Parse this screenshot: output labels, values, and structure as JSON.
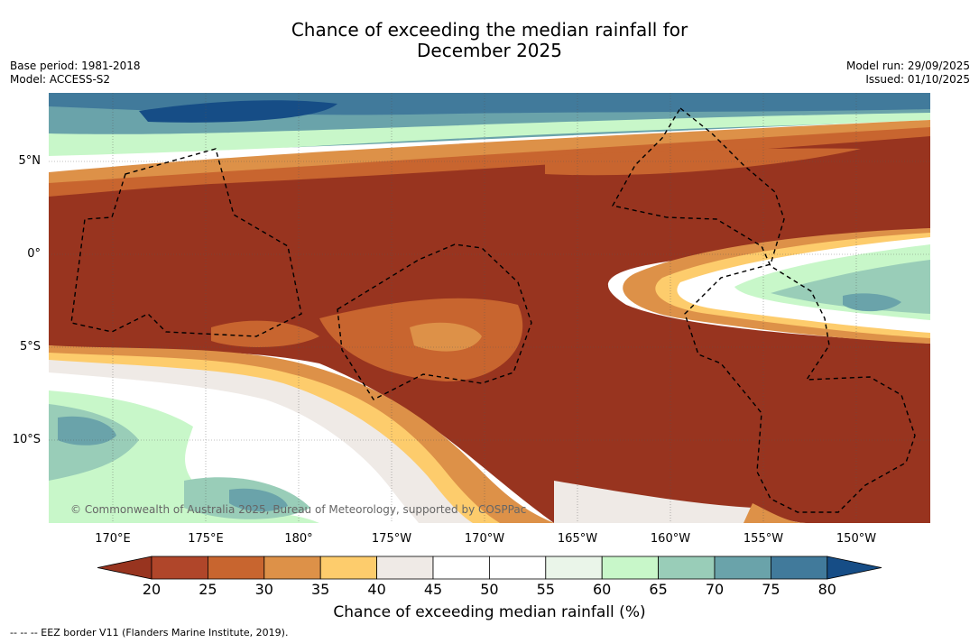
{
  "title_line1": "Chance of exceeding the median rainfall for",
  "title_line2": "December 2025",
  "meta_left": [
    "Base period: 1981-2018",
    "Model: ACCESS-S2"
  ],
  "meta_right": [
    "Model run: 29/09/2025",
    "Issued: 01/10/2025"
  ],
  "lat_labels": [
    "5°N",
    "0°",
    "5°S",
    "10°S"
  ],
  "lon_labels": [
    "170°E",
    "175°E",
    "180°",
    "175°W",
    "170°W",
    "165°W",
    "160°W",
    "155°W",
    "150°W"
  ],
  "attribution": "© Commonwealth of Australia 2025, Bureau of Meteorology, supported by COSPPac",
  "colorbar": {
    "title": "Chance of exceeding median rainfall (%)",
    "ticks": [
      "20",
      "25",
      "30",
      "35",
      "40",
      "45",
      "50",
      "55",
      "60",
      "65",
      "70",
      "75",
      "80"
    ],
    "colors": [
      "#98341f",
      "#b0462a",
      "#c8652f",
      "#dd9148",
      "#fdcc6c",
      "#efeae6",
      "#ffffff",
      "#ffffff",
      "#eaf5e9",
      "#c8f7c9",
      "#99cdb8",
      "#6aa3aa",
      "#417a9b",
      "#164d86"
    ],
    "under_color": "#98341f",
    "over_color": "#164d86"
  },
  "footer": "-- -- -- EEZ border V11 (Flanders Marine Institute, 2019)."
}
